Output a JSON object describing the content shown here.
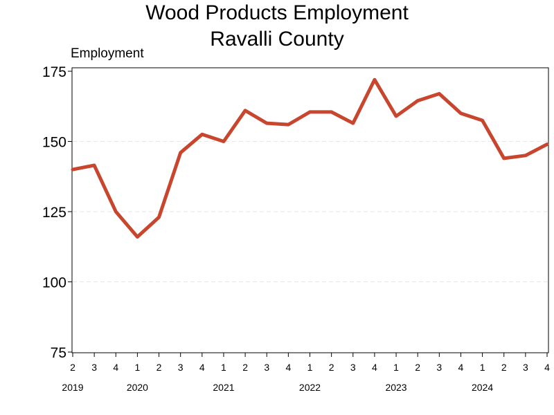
{
  "chart_data": {
    "type": "line",
    "title": [
      "Wood Products Employment",
      "Ravalli County"
    ],
    "ylabel": "Employment",
    "xlabel": "",
    "ylim": [
      75,
      175
    ],
    "yticks": [
      75,
      100,
      125,
      150,
      175
    ],
    "grid": "horizontal dashed",
    "line_color": "#c8452e",
    "x_quarters": [
      "2",
      "3",
      "4",
      "1",
      "2",
      "3",
      "4",
      "1",
      "2",
      "3",
      "4",
      "1",
      "2",
      "3",
      "4",
      "1",
      "2",
      "3",
      "4",
      "1",
      "2",
      "3",
      "4"
    ],
    "x_years": [
      {
        "label": "2019",
        "index": 0
      },
      {
        "label": "2020",
        "index": 3
      },
      {
        "label": "2021",
        "index": 7
      },
      {
        "label": "2022",
        "index": 11
      },
      {
        "label": "2023",
        "index": 15
      },
      {
        "label": "2024",
        "index": 19
      }
    ],
    "series": [
      {
        "values": [
          140,
          141.5,
          125,
          116,
          123,
          146,
          152.5,
          150,
          161,
          156.5,
          156,
          160.5,
          160.5,
          156.5,
          172,
          159,
          164.5,
          167,
          160,
          157.5,
          144,
          145,
          149
        ]
      }
    ]
  }
}
